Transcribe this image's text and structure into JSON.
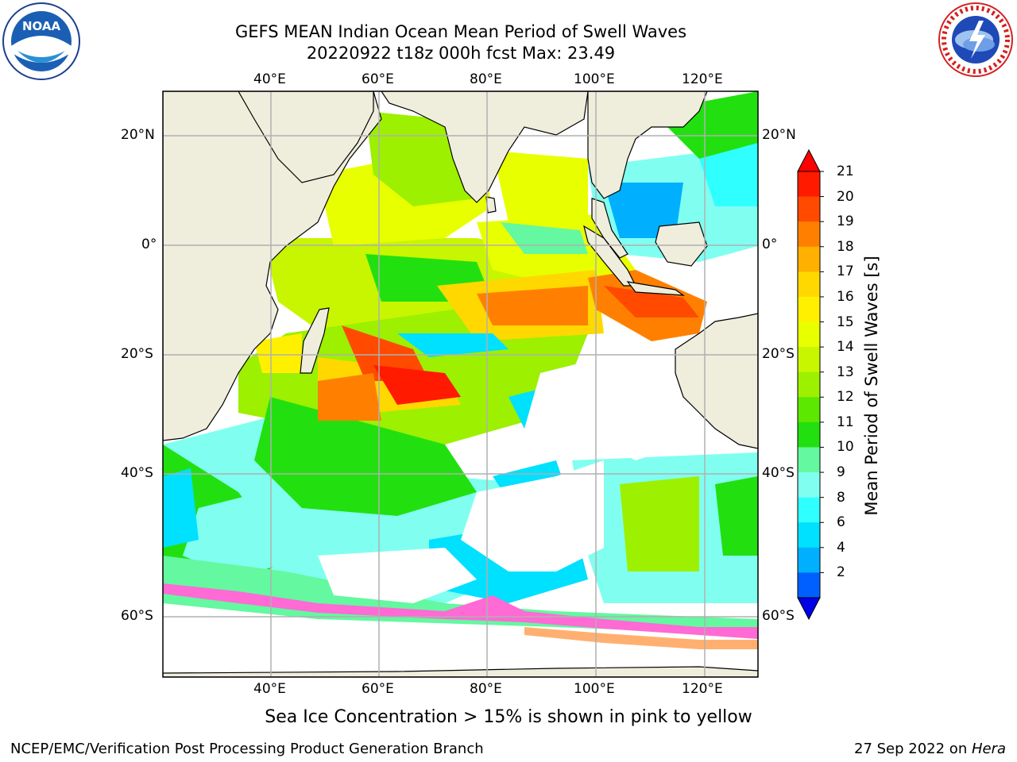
{
  "title": {
    "line1": "GEFS MEAN Indian Ocean Mean Period of Swell Waves",
    "line2": "20220922 t18z 000h fcst   Max: 23.49"
  },
  "logos": {
    "left": {
      "name": "noaa-logo-icon",
      "text": "NOAA",
      "ring_text": "NATIONAL OCEANIC AND ATMOSPHERIC ADMINISTRATION · U.S. DEPARTMENT OF COMMERCE"
    },
    "right": {
      "name": "nws-logo-icon",
      "ring_text": "NATIONAL WEATHER SERVICE"
    }
  },
  "map": {
    "lon_labels": [
      "40°E",
      "60°E",
      "80°E",
      "100°E",
      "120°E"
    ],
    "lat_labels_left": [
      "20°N",
      "0°",
      "20°S",
      "40°S",
      "60°S"
    ],
    "lat_labels_right": [
      "20°N",
      "0°",
      "20°S",
      "40°S",
      "60°S"
    ],
    "land_color": "#efeddc",
    "grid_color": "#b0b0b0"
  },
  "colorbar": {
    "label": "Mean Period of Swell Waves [s]",
    "ticks": [
      "21",
      "20",
      "19",
      "18",
      "17",
      "16",
      "15",
      "14",
      "13",
      "12",
      "11",
      "10",
      "9",
      "8",
      "6",
      "4",
      "2"
    ],
    "colors": [
      "#ff1a00",
      "#ff4a00",
      "#ff8000",
      "#ffb000",
      "#ffd800",
      "#fff000",
      "#e8ff00",
      "#c8f500",
      "#9cf000",
      "#5ce800",
      "#22e010",
      "#64f8a0",
      "#80fff0",
      "#30ffff",
      "#00e0ff",
      "#00b0ff",
      "#0060ff"
    ],
    "over_color": "#ff0000",
    "under_color": "#0000e8"
  },
  "caption": "Sea Ice Concentration > 15% is shown in pink to yellow",
  "footer": {
    "left": "NCEP/EMC/Verification Post Processing Product Generation Branch",
    "right_date": "27 Sep 2022 on ",
    "right_host": "Hera"
  }
}
